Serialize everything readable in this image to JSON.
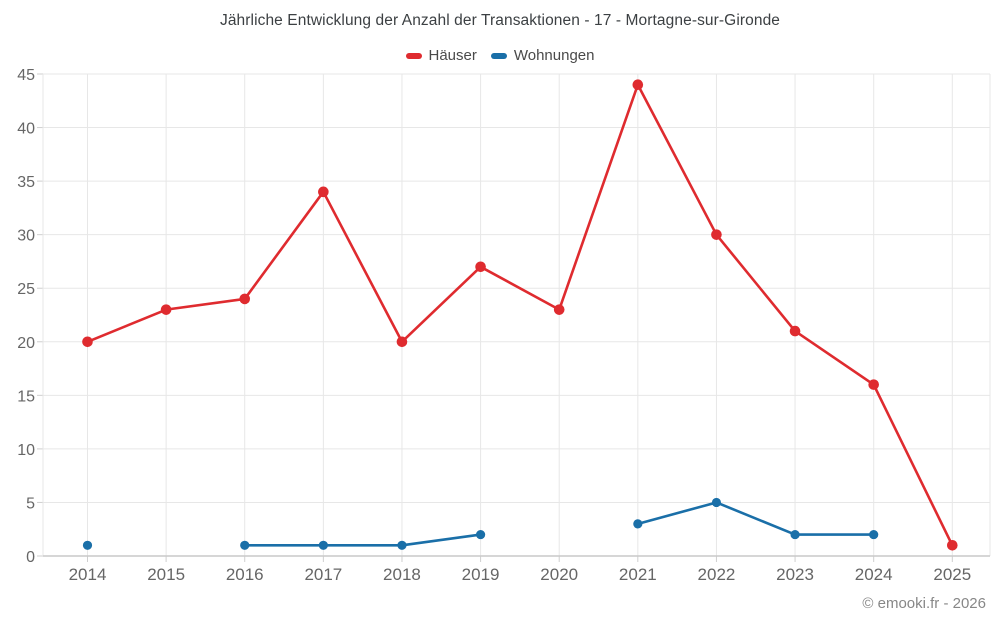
{
  "header": {
    "title": "Jährliche Entwicklung der Anzahl der Transaktionen - 17 - Mortagne-sur-Gironde"
  },
  "legend": {
    "items": [
      {
        "label": "Häuser",
        "color": "#df2b2f"
      },
      {
        "label": "Wohnungen",
        "color": "#1a6fa8"
      }
    ]
  },
  "footer": {
    "copyright": "© emooki.fr - 2026"
  },
  "colors": {
    "grid": "#e7e7e7",
    "axis": "#c9c9c9",
    "tick": "#cfcfcf",
    "tick_label": "#666666",
    "title_text": "#3c4043",
    "copyright_text": "#878787"
  },
  "chart_data": {
    "type": "line",
    "title": "Jährliche Entwicklung der Anzahl der Transaktionen - 17 - Mortagne-sur-Gironde",
    "categories": [
      "2014",
      "2015",
      "2016",
      "2017",
      "2018",
      "2019",
      "2020",
      "2021",
      "2022",
      "2023",
      "2024",
      "2025"
    ],
    "series": [
      {
        "name": "Häuser",
        "color": "#df2b2f",
        "values": [
          20,
          23,
          24,
          34,
          20,
          27,
          23,
          44,
          30,
          21,
          16,
          1
        ]
      },
      {
        "name": "Wohnungen",
        "color": "#1a6fa8",
        "values": [
          1,
          null,
          1,
          1,
          1,
          2,
          null,
          3,
          5,
          2,
          2,
          null
        ]
      }
    ],
    "xlabel": "",
    "ylabel": "",
    "ylim": [
      0,
      45
    ],
    "ytick_step": 5,
    "grid": true,
    "legend_position": "top",
    "marker": "circle"
  }
}
